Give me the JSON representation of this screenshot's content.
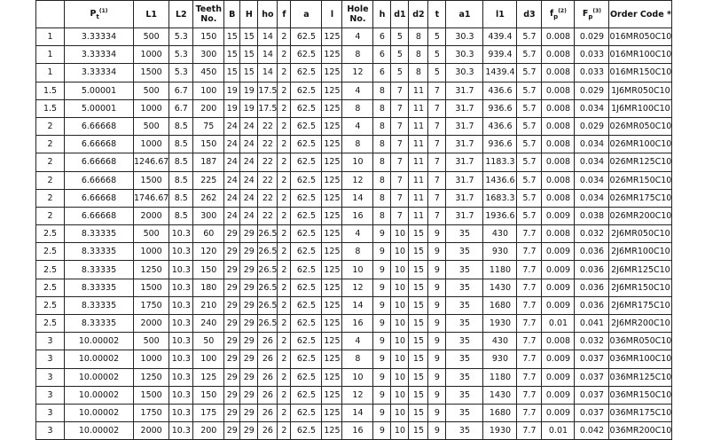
{
  "headers": [
    "",
    "P",
    "L1",
    "L2",
    "Teeth No.",
    "B",
    "H",
    "ho",
    "f",
    "a",
    "l",
    "Hole No.",
    "h",
    "d1",
    "d2",
    "t",
    "a1",
    "l1",
    "d3",
    "f",
    "F",
    "Order Code *"
  ],
  "header_parts": {
    "pt_sub": "t",
    "pt_sup": "(1)",
    "fp_sub": "p",
    "fp_sup": "(2)",
    "Fp_sub": "p",
    "Fp_sup": "(3)"
  },
  "rows": [
    [
      "1",
      "3.33334",
      "500",
      "5.3",
      "150",
      "15",
      "15",
      "14",
      "2",
      "62.5",
      "125",
      "4",
      "6",
      "5",
      "8",
      "5",
      "30.3",
      "439.4",
      "5.7",
      "0.008",
      "0.029",
      "016MR050C10"
    ],
    [
      "1",
      "3.33334",
      "1000",
      "5.3",
      "300",
      "15",
      "15",
      "14",
      "2",
      "62.5",
      "125",
      "8",
      "6",
      "5",
      "8",
      "5",
      "30.3",
      "939.4",
      "5.7",
      "0.008",
      "0.033",
      "016MR100C10"
    ],
    [
      "1",
      "3.33334",
      "1500",
      "5.3",
      "450",
      "15",
      "15",
      "14",
      "2",
      "62.5",
      "125",
      "12",
      "6",
      "5",
      "8",
      "5",
      "30.3",
      "1439.4",
      "5.7",
      "0.008",
      "0.033",
      "016MR150C10"
    ],
    [
      "1.5",
      "5.00001",
      "500",
      "6.7",
      "100",
      "19",
      "19",
      "17.5",
      "2",
      "62.5",
      "125",
      "4",
      "8",
      "7",
      "11",
      "7",
      "31.7",
      "436.6",
      "5.7",
      "0.008",
      "0.029",
      "1J6MR050C10"
    ],
    [
      "1.5",
      "5.00001",
      "1000",
      "6.7",
      "200",
      "19",
      "19",
      "17.5",
      "2",
      "62.5",
      "125",
      "8",
      "8",
      "7",
      "11",
      "7",
      "31.7",
      "936.6",
      "5.7",
      "0.008",
      "0.034",
      "1J6MR100C10"
    ],
    [
      "2",
      "6.66668",
      "500",
      "8.5",
      "75",
      "24",
      "24",
      "22",
      "2",
      "62.5",
      "125",
      "4",
      "8",
      "7",
      "11",
      "7",
      "31.7",
      "436.6",
      "5.7",
      "0.008",
      "0.029",
      "026MR050C10"
    ],
    [
      "2",
      "6.66668",
      "1000",
      "8.5",
      "150",
      "24",
      "24",
      "22",
      "2",
      "62.5",
      "125",
      "8",
      "8",
      "7",
      "11",
      "7",
      "31.7",
      "936.6",
      "5.7",
      "0.008",
      "0.034",
      "026MR100C10"
    ],
    [
      "2",
      "6.66668",
      "1246.67",
      "8.5",
      "187",
      "24",
      "24",
      "22",
      "2",
      "62.5",
      "125",
      "10",
      "8",
      "7",
      "11",
      "7",
      "31.7",
      "1183.3",
      "5.7",
      "0.008",
      "0.034",
      "026MR125C10"
    ],
    [
      "2",
      "6.66668",
      "1500",
      "8.5",
      "225",
      "24",
      "24",
      "22",
      "2",
      "62.5",
      "125",
      "12",
      "8",
      "7",
      "11",
      "7",
      "31.7",
      "1436.6",
      "5.7",
      "0.008",
      "0.034",
      "026MR150C10"
    ],
    [
      "2",
      "6.66668",
      "1746.67",
      "8.5",
      "262",
      "24",
      "24",
      "22",
      "2",
      "62.5",
      "125",
      "14",
      "8",
      "7",
      "11",
      "7",
      "31.7",
      "1683.3",
      "5.7",
      "0.008",
      "0.034",
      "026MR175C10"
    ],
    [
      "2",
      "6.66668",
      "2000",
      "8.5",
      "300",
      "24",
      "24",
      "22",
      "2",
      "62.5",
      "125",
      "16",
      "8",
      "7",
      "11",
      "7",
      "31.7",
      "1936.6",
      "5.7",
      "0.009",
      "0.038",
      "026MR200C10"
    ],
    [
      "2.5",
      "8.33335",
      "500",
      "10.3",
      "60",
      "29",
      "29",
      "26.5",
      "2",
      "62.5",
      "125",
      "4",
      "9",
      "10",
      "15",
      "9",
      "35",
      "430",
      "7.7",
      "0.008",
      "0.032",
      "2J6MR050C10"
    ],
    [
      "2.5",
      "8.33335",
      "1000",
      "10.3",
      "120",
      "29",
      "29",
      "26.5",
      "2",
      "62.5",
      "125",
      "8",
      "9",
      "10",
      "15",
      "9",
      "35",
      "930",
      "7.7",
      "0.009",
      "0.036",
      "2J6MR100C10"
    ],
    [
      "2.5",
      "8.33335",
      "1250",
      "10.3",
      "150",
      "29",
      "29",
      "26.5",
      "2",
      "62.5",
      "125",
      "10",
      "9",
      "10",
      "15",
      "9",
      "35",
      "1180",
      "7.7",
      "0.009",
      "0.036",
      "2J6MR125C10"
    ],
    [
      "2.5",
      "8.33335",
      "1500",
      "10.3",
      "180",
      "29",
      "29",
      "26.5",
      "2",
      "62.5",
      "125",
      "12",
      "9",
      "10",
      "15",
      "9",
      "35",
      "1430",
      "7.7",
      "0.009",
      "0.036",
      "2J6MR150C10"
    ],
    [
      "2.5",
      "8.33335",
      "1750",
      "10.3",
      "210",
      "29",
      "29",
      "26.5",
      "2",
      "62.5",
      "125",
      "14",
      "9",
      "10",
      "15",
      "9",
      "35",
      "1680",
      "7.7",
      "0.009",
      "0.036",
      "2J6MR175C10"
    ],
    [
      "2.5",
      "8.33335",
      "2000",
      "10.3",
      "240",
      "29",
      "29",
      "26.5",
      "2",
      "62.5",
      "125",
      "16",
      "9",
      "10",
      "15",
      "9",
      "35",
      "1930",
      "7.7",
      "0.01",
      "0.041",
      "2J6MR200C10"
    ],
    [
      "3",
      "10.00002",
      "500",
      "10.3",
      "50",
      "29",
      "29",
      "26",
      "2",
      "62.5",
      "125",
      "4",
      "9",
      "10",
      "15",
      "9",
      "35",
      "430",
      "7.7",
      "0.008",
      "0.032",
      "036MR050C10"
    ],
    [
      "3",
      "10.00002",
      "1000",
      "10.3",
      "100",
      "29",
      "29",
      "26",
      "2",
      "62.5",
      "125",
      "8",
      "9",
      "10",
      "15",
      "9",
      "35",
      "930",
      "7.7",
      "0.009",
      "0.037",
      "036MR100C10"
    ],
    [
      "3",
      "10.00002",
      "1250",
      "10.3",
      "125",
      "29",
      "29",
      "26",
      "2",
      "62.5",
      "125",
      "10",
      "9",
      "10",
      "15",
      "9",
      "35",
      "1180",
      "7.7",
      "0.009",
      "0.037",
      "036MR125C10"
    ],
    [
      "3",
      "10.00002",
      "1500",
      "10.3",
      "150",
      "29",
      "29",
      "26",
      "2",
      "62.5",
      "125",
      "12",
      "9",
      "10",
      "15",
      "9",
      "35",
      "1430",
      "7.7",
      "0.009",
      "0.037",
      "036MR150C10"
    ],
    [
      "3",
      "10.00002",
      "1750",
      "10.3",
      "175",
      "29",
      "29",
      "26",
      "2",
      "62.5",
      "125",
      "14",
      "9",
      "10",
      "15",
      "9",
      "35",
      "1680",
      "7.7",
      "0.009",
      "0.037",
      "036MR175C10"
    ],
    [
      "3",
      "10.00002",
      "2000",
      "10.3",
      "200",
      "29",
      "29",
      "26",
      "2",
      "62.5",
      "125",
      "16",
      "9",
      "10",
      "15",
      "9",
      "35",
      "1930",
      "7.7",
      "0.01",
      "0.042",
      "036MR200C10"
    ]
  ]
}
